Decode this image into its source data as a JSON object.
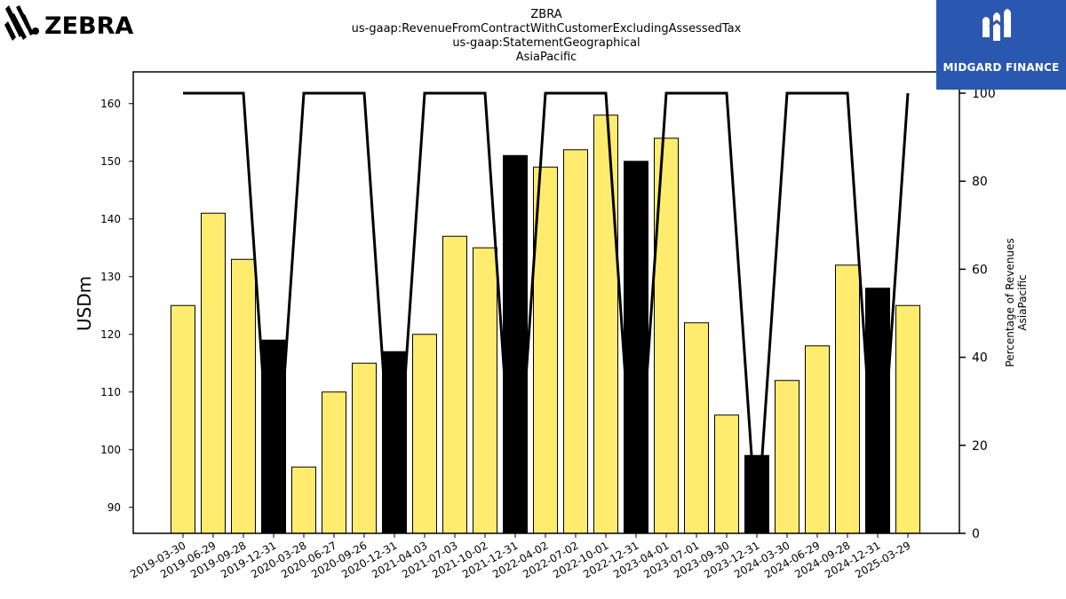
{
  "brand": {
    "left_logo_text": "ZEBRA",
    "right_logo_text": "MIDGARD FINANCE",
    "right_logo_color": "#2a57b0"
  },
  "chart_data": {
    "type": "bar",
    "title_lines": [
      "ZBRA",
      "us-gaap:RevenueFromContractWithCustomerExcludingAssessedTax",
      "us-gaap:StatementGeographical",
      "AsiaPacific"
    ],
    "ylabel": "USDm",
    "y2label_lines": [
      "Percentage of Revenues",
      "AsiaPacific"
    ],
    "ylim": [
      85.5,
      165.5
    ],
    "y2lim": [
      0,
      100
    ],
    "yticks": [
      90,
      100,
      110,
      120,
      130,
      140,
      150,
      160
    ],
    "y2ticks": [
      0,
      20,
      40,
      60,
      80,
      100
    ],
    "categories": [
      "2019-03-30",
      "2019-06-29",
      "2019-09-28",
      "2019-12-31",
      "2020-03-28",
      "2020-06-27",
      "2020-09-26",
      "2020-12-31",
      "2021-04-03",
      "2021-07-03",
      "2021-10-02",
      "2021-12-31",
      "2022-04-02",
      "2022-07-02",
      "2022-10-01",
      "2022-12-31",
      "2023-04-01",
      "2023-07-01",
      "2023-09-30",
      "2023-12-31",
      "2024-03-30",
      "2024-06-29",
      "2024-09-28",
      "2024-12-31",
      "2025-03-29"
    ],
    "values": [
      125,
      141,
      133,
      119,
      97,
      110,
      115,
      117,
      120,
      137,
      135,
      151,
      149,
      152,
      158,
      150,
      154,
      122,
      106,
      99,
      112,
      118,
      132,
      128,
      125
    ],
    "bar_colors": [
      "#ffec6e",
      "#ffec6e",
      "#ffec6e",
      "#000000",
      "#ffec6e",
      "#ffec6e",
      "#ffec6e",
      "#000000",
      "#ffec6e",
      "#ffec6e",
      "#ffec6e",
      "#000000",
      "#ffec6e",
      "#ffec6e",
      "#ffec6e",
      "#000000",
      "#ffec6e",
      "#ffec6e",
      "#ffec6e",
      "#000000",
      "#ffec6e",
      "#ffec6e",
      "#ffec6e",
      "#000000",
      "#ffec6e"
    ],
    "line_values": [
      100,
      100,
      100,
      0,
      100,
      100,
      100,
      0,
      100,
      100,
      100,
      0,
      100,
      100,
      100,
      0,
      100,
      100,
      100,
      0,
      100,
      100,
      100,
      0,
      100
    ],
    "line_color": "#000000",
    "grid": false
  }
}
